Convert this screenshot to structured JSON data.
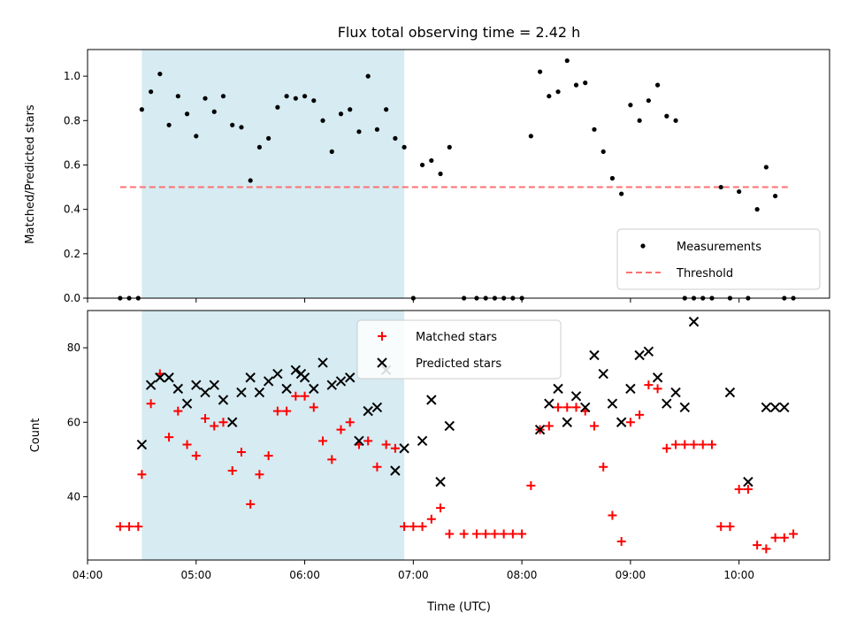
{
  "chart_data": [
    {
      "type": "scatter",
      "title": "Flux total observing time = 2.42 h",
      "xlabel": "",
      "ylabel": "Matched/Predicted stars",
      "xlim": [
        "04:00",
        "10:50"
      ],
      "ylim": [
        0,
        1.12
      ],
      "yticks": [
        0.0,
        0.2,
        0.4,
        0.6,
        0.8,
        1.0
      ],
      "ytick_labels": [
        "0.0",
        "0.2",
        "0.4",
        "0.6",
        "0.8",
        "1.0"
      ],
      "shaded_span": [
        "04:30",
        "06:55"
      ],
      "shaded_color": "#add8e6",
      "threshold": {
        "name": "Threshold",
        "value": 0.5,
        "x_range": [
          "04:18",
          "10:28"
        ],
        "color": "#ff7070"
      },
      "legend": {
        "entries": [
          "Measurements",
          "Threshold"
        ],
        "placement": "lower right"
      },
      "series": [
        {
          "name": "Measurements",
          "color": "#000000",
          "x": [
            "04:18",
            "04:23",
            "04:28",
            "04:30",
            "04:35",
            "04:40",
            "04:45",
            "04:50",
            "04:55",
            "05:00",
            "05:05",
            "05:10",
            "05:15",
            "05:20",
            "05:25",
            "05:30",
            "05:35",
            "05:40",
            "05:45",
            "05:50",
            "05:55",
            "06:00",
            "06:05",
            "06:10",
            "06:15",
            "06:20",
            "06:25",
            "06:30",
            "06:35",
            "06:40",
            "06:45",
            "06:50",
            "06:55",
            "07:00",
            "07:05",
            "07:10",
            "07:15",
            "07:20",
            "07:28",
            "07:35",
            "07:40",
            "07:45",
            "07:50",
            "07:55",
            "08:00",
            "08:05",
            "08:10",
            "08:15",
            "08:20",
            "08:25",
            "08:30",
            "08:35",
            "08:40",
            "08:45",
            "08:50",
            "08:55",
            "09:00",
            "09:05",
            "09:10",
            "09:15",
            "09:20",
            "09:25",
            "09:30",
            "09:35",
            "09:40",
            "09:45",
            "09:50",
            "09:55",
            "10:00",
            "10:05",
            "10:10",
            "10:15",
            "10:20",
            "10:25",
            "10:30"
          ],
          "y": [
            0,
            0,
            0,
            0.85,
            0.93,
            1.01,
            0.78,
            0.91,
            0.83,
            0.73,
            0.9,
            0.84,
            0.91,
            0.78,
            0.77,
            0.53,
            0.68,
            0.72,
            0.86,
            0.91,
            0.9,
            0.91,
            0.89,
            0.8,
            0.66,
            0.83,
            0.85,
            0.75,
            1.0,
            0.76,
            0.85,
            0.72,
            0.68,
            0,
            0.6,
            0.62,
            0.56,
            0.68,
            0,
            0,
            0,
            0,
            0,
            0,
            0,
            0.73,
            1.02,
            0.91,
            0.93,
            1.07,
            0.96,
            0.97,
            0.76,
            0.66,
            0.54,
            0.47,
            0.87,
            0.8,
            0.89,
            0.96,
            0.82,
            0.8,
            0,
            0,
            0,
            0,
            0.5,
            0,
            0.48,
            0,
            0.4,
            0.59,
            0.46,
            0,
            0
          ]
        }
      ]
    },
    {
      "type": "scatter",
      "title": "",
      "xlabel": "Time (UTC)",
      "ylabel": "Count",
      "xlim": [
        "04:00",
        "10:50"
      ],
      "xticks": [
        "04:00",
        "05:00",
        "06:00",
        "07:00",
        "08:00",
        "09:00",
        "10:00"
      ],
      "xtick_labels": [
        "04:00",
        "05:00",
        "06:00",
        "07:00",
        "08:00",
        "09:00",
        "10:00"
      ],
      "ylim": [
        23,
        90
      ],
      "yticks": [
        40,
        60,
        80
      ],
      "ytick_labels": [
        "40",
        "60",
        "80"
      ],
      "shaded_span": [
        "04:30",
        "06:55"
      ],
      "shaded_color": "#add8e6",
      "legend": {
        "entries": [
          "Matched stars",
          "Predicted stars"
        ],
        "placement": "upper center"
      },
      "series": [
        {
          "name": "Matched stars",
          "marker": "+",
          "color": "#ff0000",
          "x": [
            "04:18",
            "04:23",
            "04:28",
            "04:30",
            "04:35",
            "04:40",
            "04:45",
            "04:50",
            "04:55",
            "05:00",
            "05:05",
            "05:10",
            "05:15",
            "05:20",
            "05:25",
            "05:30",
            "05:35",
            "05:40",
            "05:45",
            "05:50",
            "05:55",
            "06:00",
            "06:05",
            "06:10",
            "06:15",
            "06:20",
            "06:25",
            "06:30",
            "06:35",
            "06:40",
            "06:45",
            "06:50",
            "06:55",
            "07:00",
            "07:05",
            "07:10",
            "07:15",
            "07:20",
            "07:28",
            "07:35",
            "07:40",
            "07:45",
            "07:50",
            "07:55",
            "08:00",
            "08:05",
            "08:10",
            "08:15",
            "08:20",
            "08:25",
            "08:30",
            "08:35",
            "08:40",
            "08:45",
            "08:50",
            "08:55",
            "09:00",
            "09:05",
            "09:10",
            "09:15",
            "09:20",
            "09:25",
            "09:30",
            "09:35",
            "09:40",
            "09:45",
            "09:50",
            "09:55",
            "10:00",
            "10:05",
            "10:10",
            "10:15",
            "10:20",
            "10:25",
            "10:30"
          ],
          "y": [
            32,
            32,
            32,
            46,
            65,
            73,
            56,
            63,
            54,
            51,
            61,
            59,
            60,
            47,
            52,
            38,
            46,
            51,
            63,
            63,
            67,
            67,
            64,
            55,
            50,
            58,
            60,
            54,
            55,
            48,
            54,
            53,
            32,
            32,
            32,
            34,
            37,
            30,
            30,
            30,
            30,
            30,
            30,
            30,
            30,
            43,
            58,
            59,
            64,
            64,
            64,
            63,
            59,
            48,
            35,
            28,
            60,
            62,
            70,
            69,
            53,
            54,
            54,
            54,
            54,
            54,
            32,
            32,
            42,
            42,
            27,
            26,
            29,
            29,
            30
          ]
        },
        {
          "name": "Predicted stars",
          "marker": "x",
          "color": "#000000",
          "x": [
            "04:30",
            "04:35",
            "04:40",
            "04:45",
            "04:50",
            "04:55",
            "05:00",
            "05:05",
            "05:10",
            "05:15",
            "05:20",
            "05:25",
            "05:30",
            "05:35",
            "05:40",
            "05:45",
            "05:50",
            "05:55",
            "05:58",
            "06:00",
            "06:05",
            "06:10",
            "06:15",
            "06:20",
            "06:25",
            "06:30",
            "06:35",
            "06:40",
            "06:45",
            "06:50",
            "06:55",
            "07:05",
            "07:10",
            "07:15",
            "07:20",
            "08:10",
            "08:15",
            "08:20",
            "08:25",
            "08:30",
            "08:35",
            "08:40",
            "08:45",
            "08:50",
            "08:55",
            "09:00",
            "09:05",
            "09:10",
            "09:15",
            "09:20",
            "09:25",
            "09:30",
            "09:35",
            "09:55",
            "10:05",
            "10:15",
            "10:20",
            "10:25"
          ],
          "y": [
            54,
            70,
            72,
            72,
            69,
            65,
            70,
            68,
            70,
            66,
            60,
            68,
            72,
            68,
            71,
            73,
            69,
            74,
            73,
            72,
            69,
            76,
            70,
            71,
            72,
            55,
            63,
            64,
            74,
            47,
            53,
            55,
            66,
            44,
            59,
            58,
            65,
            69,
            60,
            67,
            64,
            78,
            73,
            65,
            60,
            69,
            78,
            79,
            72,
            65,
            68,
            64,
            87,
            68,
            44,
            64,
            64,
            64
          ]
        }
      ]
    }
  ]
}
